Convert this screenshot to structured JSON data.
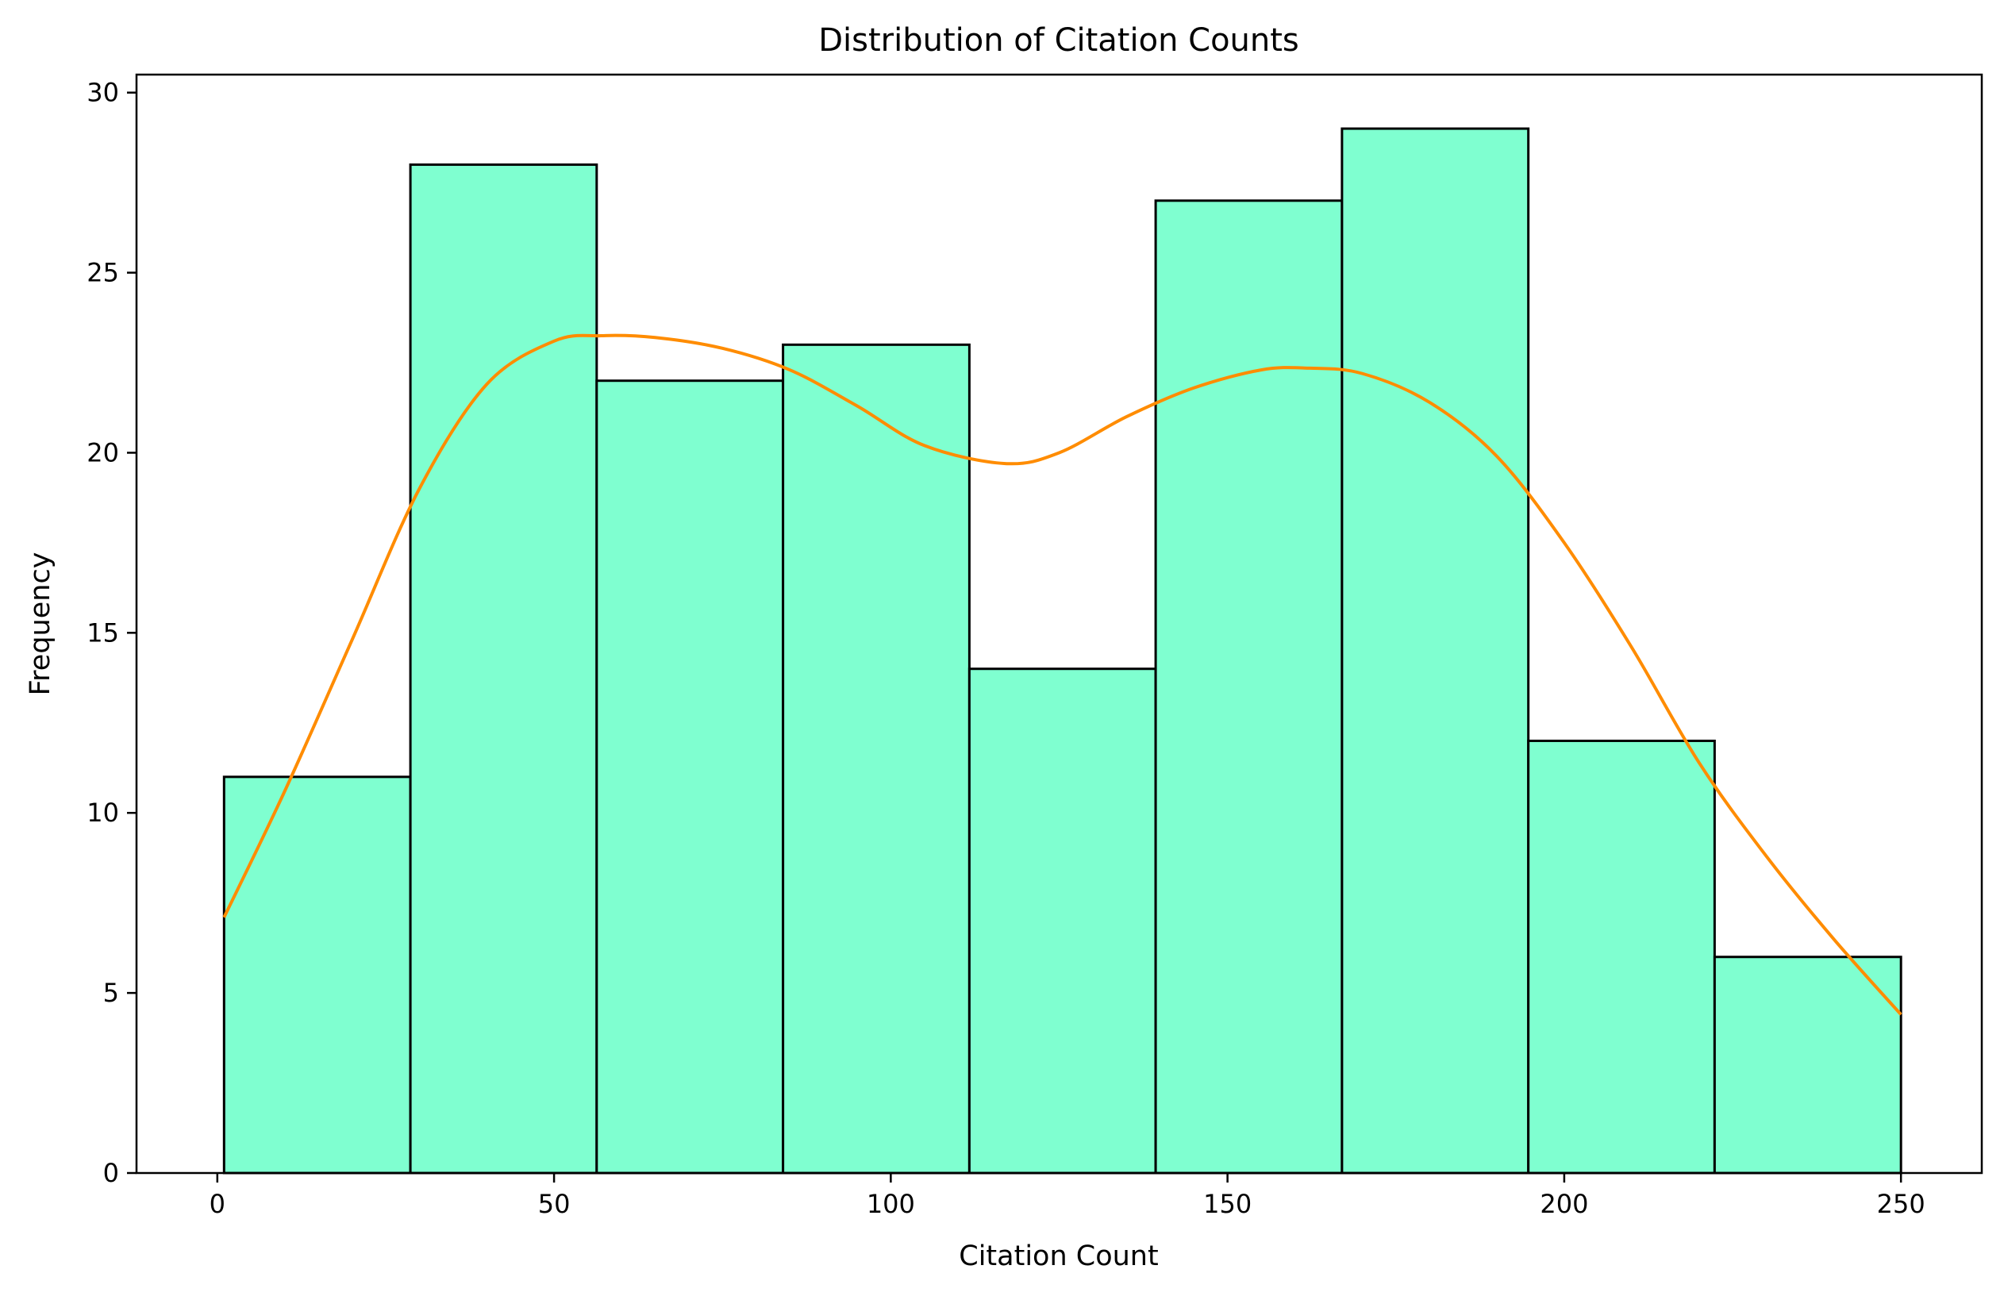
{
  "chart_data": {
    "type": "bar",
    "title": "Distribution of Citation Counts",
    "xlabel": "Citation Count",
    "ylabel": "Frequency",
    "xlim": [
      -12,
      262
    ],
    "ylim": [
      0,
      30.5
    ],
    "xticks": [
      0,
      50,
      100,
      150,
      200,
      250
    ],
    "yticks": [
      0,
      5,
      10,
      15,
      20,
      25,
      30
    ],
    "bin_edges": [
      1,
      28.67,
      56.33,
      84,
      111.67,
      139.33,
      167,
      194.67,
      222.33,
      250
    ],
    "values": [
      11,
      28,
      22,
      23,
      14,
      27,
      29,
      12,
      6
    ],
    "kde": {
      "name": "",
      "x": [
        1,
        10,
        20,
        30,
        40,
        50,
        57,
        65,
        75,
        85,
        95,
        105,
        117,
        125,
        135,
        145,
        155,
        162,
        170,
        180,
        190,
        200,
        210,
        220,
        230,
        240,
        250
      ],
      "y": [
        7.1,
        10.6,
        14.8,
        19.0,
        21.9,
        23.1,
        23.25,
        23.2,
        22.9,
        22.3,
        21.3,
        20.2,
        19.7,
        20.0,
        21.0,
        21.8,
        22.3,
        22.35,
        22.2,
        21.4,
        19.9,
        17.5,
        14.6,
        11.4,
        8.8,
        6.5,
        4.4
      ]
    },
    "colors": {
      "bar_fill": "#7fffd0",
      "bar_edge": "#000000",
      "kde_line": "#ff8c00"
    },
    "grid": false,
    "legend": "none"
  }
}
